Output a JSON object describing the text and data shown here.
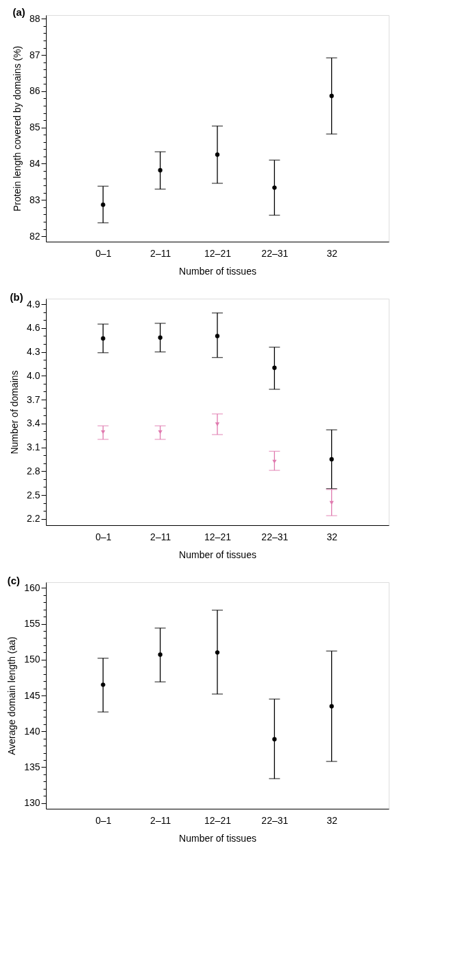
{
  "chart_data": [
    {
      "type": "scatter",
      "title": "(a)",
      "xlabel": "Number of tissues",
      "ylabel": "Protein length covered by domains (%)",
      "categories": [
        "0–1",
        "2–11",
        "12–21",
        "22–31",
        "32"
      ],
      "marker": "circle",
      "grid": false,
      "series": [
        {
          "color": "#000000",
          "values": [
            82.87,
            83.82,
            84.25,
            83.34,
            85.87
          ],
          "errors": [
            [
              82.37,
              83.38
            ],
            [
              83.3,
              84.33
            ],
            [
              83.46,
              85.04
            ],
            [
              82.58,
              84.1
            ],
            [
              84.82,
              86.92
            ]
          ]
        }
      ],
      "ylim": [
        81.85,
        88.1
      ],
      "yticks": [
        82,
        {
          "value": 82.2,
          "label": null
        },
        {
          "value": 82.4,
          "label": null
        },
        {
          "value": 82.6,
          "label": null
        },
        {
          "value": 82.8,
          "label": null
        },
        83,
        {
          "value": 83.2,
          "label": null
        },
        {
          "value": 83.4,
          "label": null
        },
        {
          "value": 83.6,
          "label": null
        },
        {
          "value": 83.8,
          "label": null
        },
        84,
        {
          "value": 84.2,
          "label": null
        },
        {
          "value": 84.4,
          "label": null
        },
        {
          "value": 84.6,
          "label": null
        },
        {
          "value": 84.8,
          "label": null
        },
        85,
        {
          "value": 85.2,
          "label": null
        },
        {
          "value": 85.4,
          "label": null
        },
        {
          "value": 85.6,
          "label": null
        },
        {
          "value": 85.8,
          "label": null
        },
        86,
        {
          "value": 86.2,
          "label": null
        },
        {
          "value": 86.4,
          "label": null
        },
        {
          "value": 86.6,
          "label": null
        },
        {
          "value": 86.8,
          "label": null
        },
        87,
        {
          "value": 87.2,
          "label": null
        },
        {
          "value": 87.4,
          "label": null
        },
        {
          "value": 87.6,
          "label": null
        },
        {
          "value": 87.8,
          "label": null
        },
        88
      ]
    },
    {
      "type": "scatter",
      "title": "(b)",
      "xlabel": "Number of tissues",
      "ylabel": "Number of domains",
      "categories": [
        "0–1",
        "2–11",
        "12–21",
        "22–31",
        "32"
      ],
      "grid": false,
      "series": [
        {
          "color": "#000000",
          "marker": "circle",
          "values": [
            4.47,
            4.48,
            4.5,
            4.1,
            2.95
          ],
          "errors": [
            [
              4.29,
              4.65
            ],
            [
              4.3,
              4.66
            ],
            [
              4.23,
              4.79
            ],
            [
              3.83,
              4.36
            ],
            [
              2.58,
              3.32
            ]
          ]
        },
        {
          "color": "#e07aaf",
          "marker": "triangle",
          "values": [
            3.29,
            3.29,
            3.39,
            2.92,
            2.4
          ],
          "errors": [
            [
              3.2,
              3.37
            ],
            [
              3.2,
              3.37
            ],
            [
              3.26,
              3.52
            ],
            [
              2.81,
              3.05
            ],
            [
              2.24,
              2.57
            ]
          ]
        }
      ],
      "ylim": [
        2.12,
        4.97
      ],
      "yticks": [
        2.2,
        {
          "value": 2.3,
          "label": null
        },
        {
          "value": 2.4,
          "label": null
        },
        2.5,
        {
          "value": 2.6,
          "label": null
        },
        {
          "value": 2.7,
          "label": null
        },
        2.8,
        {
          "value": 2.9,
          "label": null
        },
        {
          "value": 3.0,
          "label": null
        },
        3.1,
        {
          "value": 3.2,
          "label": null
        },
        {
          "value": 3.3,
          "label": null
        },
        3.4,
        {
          "value": 3.5,
          "label": null
        },
        {
          "value": 3.6,
          "label": null
        },
        3.7,
        {
          "value": 3.8,
          "label": null
        },
        {
          "value": 3.9,
          "label": null
        },
        {
          "value": 4.0,
          "label": "4.0"
        },
        {
          "value": 4.1,
          "label": null
        },
        {
          "value": 4.2,
          "label": null
        },
        4.3,
        {
          "value": 4.4,
          "label": null
        },
        {
          "value": 4.5,
          "label": null
        },
        4.6,
        {
          "value": 4.7,
          "label": null
        },
        {
          "value": 4.8,
          "label": null
        },
        4.9
      ]
    },
    {
      "type": "scatter",
      "title": "(c)",
      "xlabel": "Number of tissues",
      "ylabel": "Average domain length (aa)",
      "categories": [
        "0–1",
        "2–11",
        "12–21",
        "22–31",
        "32"
      ],
      "marker": "circle",
      "grid": false,
      "series": [
        {
          "color": "#000000",
          "values": [
            146.5,
            150.7,
            151.0,
            138.9,
            143.5
          ],
          "errors": [
            [
              142.7,
              150.2
            ],
            [
              146.9,
              154.4
            ],
            [
              145.2,
              156.9
            ],
            [
              133.4,
              144.5
            ],
            [
              135.8,
              151.2
            ]
          ]
        }
      ],
      "ylim": [
        129.2,
        160.8
      ],
      "yticks": [
        130,
        {
          "value": 131,
          "label": null
        },
        {
          "value": 132,
          "label": null
        },
        {
          "value": 133,
          "label": null
        },
        {
          "value": 134,
          "label": null
        },
        135,
        {
          "value": 136,
          "label": null
        },
        {
          "value": 137,
          "label": null
        },
        {
          "value": 138,
          "label": null
        },
        {
          "value": 139,
          "label": null
        },
        140,
        {
          "value": 141,
          "label": null
        },
        {
          "value": 142,
          "label": null
        },
        {
          "value": 143,
          "label": null
        },
        {
          "value": 144,
          "label": null
        },
        145,
        {
          "value": 146,
          "label": null
        },
        {
          "value": 147,
          "label": null
        },
        {
          "value": 148,
          "label": null
        },
        {
          "value": 149,
          "label": null
        },
        150,
        {
          "value": 151,
          "label": null
        },
        {
          "value": 152,
          "label": null
        },
        {
          "value": 153,
          "label": null
        },
        {
          "value": 154,
          "label": null
        },
        155,
        {
          "value": 156,
          "label": null
        },
        {
          "value": 157,
          "label": null
        },
        {
          "value": 158,
          "label": null
        },
        {
          "value": 159,
          "label": null
        },
        160
      ]
    }
  ]
}
